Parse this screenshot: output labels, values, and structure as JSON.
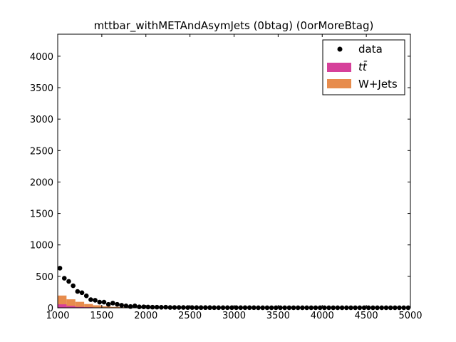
{
  "chart_data": {
    "type": "scatter",
    "title": "mttbar_withMETAndAsymJets (0btag) (0orMoreBtag)",
    "xlabel": "",
    "ylabel": "",
    "xlim": [
      1000,
      5000
    ],
    "ylim": [
      0,
      4350
    ],
    "xticks": [
      1000,
      1500,
      2000,
      2500,
      3000,
      3500,
      4000,
      4500,
      5000
    ],
    "xtick_labels": [
      "1000",
      "1500",
      "2000",
      "2500",
      "3000",
      "3500",
      "4000",
      "4500",
      "5000"
    ],
    "yticks": [
      0,
      500,
      1000,
      1500,
      2000,
      2500,
      3000,
      3500,
      4000
    ],
    "ytick_labels": [
      "0",
      "500",
      "1000",
      "1500",
      "2000",
      "2500",
      "3000",
      "3500",
      "4000"
    ],
    "grid": false,
    "legend": {
      "placement": "top-right",
      "entries": [
        "data",
        "tt̄",
        "W+Jets"
      ]
    },
    "colors": {
      "data": "#000000",
      "ttbar": "#d6409a",
      "wjets": "#e78c4d"
    },
    "series": [
      {
        "name": "data",
        "kind": "points",
        "x": [
          1025,
          1075,
          1125,
          1175,
          1225,
          1275,
          1325,
          1375,
          1425,
          1475,
          1525,
          1575,
          1625,
          1675,
          1725,
          1775,
          1825,
          1875,
          1925,
          1975,
          2025,
          2075,
          2125,
          2175,
          2225,
          2275,
          2325,
          2375,
          2425,
          2475,
          2525,
          2575,
          2625,
          2675,
          2725,
          2775,
          2825,
          2875,
          2925,
          2975,
          3025,
          3075,
          3125,
          3175,
          3225,
          3275,
          3325,
          3375,
          3425,
          3475,
          3525,
          3575,
          3625,
          3675,
          3725,
          3775,
          3825,
          3875,
          3925,
          3975,
          4025,
          4075,
          4125,
          4175,
          4225,
          4275,
          4325,
          4375,
          4425,
          4475,
          4525,
          4575,
          4625,
          4675,
          4725,
          4775,
          4825,
          4875,
          4925,
          4975
        ],
        "y": [
          630,
          470,
          420,
          350,
          260,
          240,
          190,
          130,
          120,
          90,
          90,
          55,
          75,
          55,
          40,
          30,
          20,
          30,
          15,
          15,
          12,
          10,
          10,
          8,
          10,
          5,
          5,
          5,
          5,
          4,
          4,
          3,
          3,
          3,
          3,
          2,
          2,
          2,
          2,
          2,
          2,
          2,
          2,
          2,
          2,
          1,
          1,
          1,
          1,
          1,
          1,
          1,
          1,
          1,
          1,
          1,
          1,
          1,
          1,
          1,
          1,
          1,
          1,
          1,
          1,
          1,
          1,
          1,
          1,
          1,
          1,
          1,
          1,
          1,
          1,
          1,
          1,
          1,
          1,
          1
        ]
      },
      {
        "name": "W+Jets",
        "kind": "stack-top",
        "bin_width": 100,
        "bin_lo": [
          1000,
          1100,
          1200,
          1300,
          1400,
          1500,
          1600,
          1700,
          1800,
          1900
        ],
        "values": [
          195,
          135,
          95,
          60,
          40,
          25,
          15,
          10,
          5,
          3
        ]
      },
      {
        "name": "tt̄",
        "kind": "stack-bottom",
        "bin_width": 100,
        "bin_lo": [
          1000,
          1100,
          1200,
          1300,
          1400,
          1500,
          1600,
          1700,
          1800,
          1900
        ],
        "values": [
          55,
          30,
          15,
          10,
          5,
          3,
          2,
          1,
          1,
          1
        ]
      }
    ]
  }
}
